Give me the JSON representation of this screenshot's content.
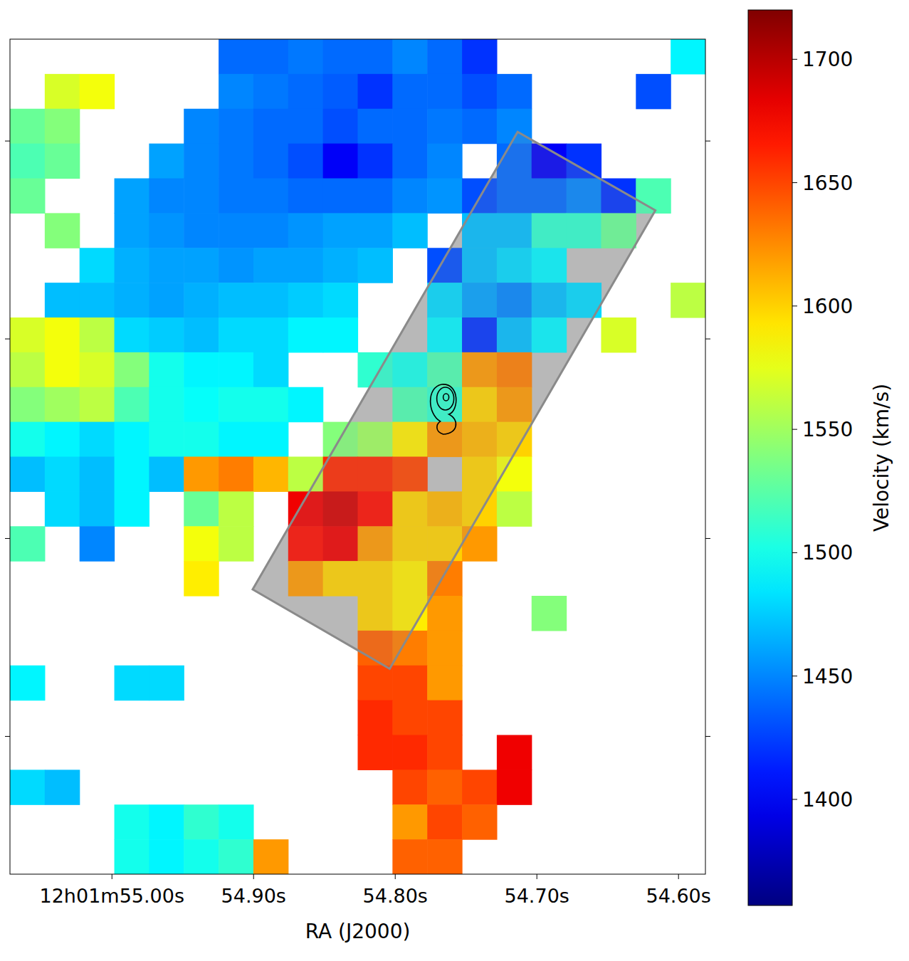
{
  "chart_data": {
    "type": "heatmap",
    "xlabel": "RA (J2000)",
    "xlim": [
      55.072,
      54.581
    ],
    "xticks": [
      {
        "value": 55.0,
        "label": "12h01m55.00s"
      },
      {
        "value": 54.9,
        "label": "54.90s"
      },
      {
        "value": 54.8,
        "label": "54.80s"
      },
      {
        "value": 54.7,
        "label": "54.70s"
      },
      {
        "value": 54.6,
        "label": "54.60s"
      }
    ],
    "ylim": [
      0,
      100
    ],
    "yticks": [
      16.5,
      40.2,
      64.1,
      87.8
    ],
    "tick_labels": "x",
    "cells": [
      [
        null,
        null,
        null,
        null,
        null,
        null,
        1440,
        1440,
        1445,
        1440,
        1440,
        1450,
        1440,
        1420,
        null,
        null,
        null,
        null,
        null,
        1490
      ],
      [
        null,
        1570,
        1580,
        null,
        null,
        null,
        1450,
        1445,
        1440,
        1435,
        1420,
        1440,
        1440,
        1430,
        1440,
        null,
        null,
        null,
        1430,
        null
      ],
      [
        1530,
        1540,
        null,
        null,
        null,
        1450,
        1445,
        1440,
        1440,
        1430,
        1440,
        1440,
        1445,
        1440,
        1450,
        null,
        null,
        null,
        null,
        null
      ],
      [
        1520,
        1530,
        null,
        null,
        1460,
        1450,
        1445,
        1440,
        1430,
        1400,
        1420,
        1440,
        1450,
        null,
        1440,
        1400,
        1420,
        null,
        null,
        null
      ],
      [
        1530,
        null,
        null,
        1460,
        1450,
        1450,
        1445,
        1445,
        1440,
        1440,
        1440,
        1450,
        1455,
        1430,
        1440,
        1440,
        1450,
        1420,
        1520,
        null
      ],
      [
        null,
        1540,
        null,
        1460,
        1455,
        1450,
        1450,
        1450,
        1455,
        1460,
        1460,
        1470,
        null,
        1470,
        1470,
        1510,
        1510,
        1530,
        null,
        null
      ],
      [
        null,
        null,
        1480,
        1465,
        1460,
        1460,
        1455,
        1460,
        1460,
        1465,
        1470,
        null,
        1430,
        1470,
        1480,
        1490,
        null,
        null,
        null,
        null
      ],
      [
        null,
        1470,
        1470,
        1465,
        1460,
        1465,
        1470,
        1470,
        1475,
        1480,
        null,
        null,
        1480,
        1460,
        1450,
        1470,
        1480,
        null,
        null,
        1560
      ],
      [
        1570,
        1580,
        1560,
        1480,
        1475,
        1470,
        1480,
        1480,
        1490,
        1490,
        null,
        null,
        1490,
        1420,
        1470,
        1490,
        null,
        1570,
        null,
        null
      ],
      [
        1560,
        1580,
        1570,
        1540,
        1500,
        1490,
        1490,
        1480,
        null,
        null,
        1510,
        1500,
        1520,
        1620,
        1630,
        null,
        null,
        null,
        null,
        null
      ],
      [
        1540,
        1550,
        1560,
        1520,
        1500,
        1495,
        1500,
        1500,
        1490,
        null,
        null,
        1520,
        1510,
        1600,
        1620,
        null,
        null,
        null,
        null,
        null
      ],
      [
        1500,
        1490,
        1480,
        1490,
        1500,
        1500,
        1490,
        1490,
        null,
        1540,
        1550,
        1590,
        1620,
        1610,
        1600,
        null,
        null,
        null,
        null,
        null
      ],
      [
        1470,
        1480,
        1470,
        1490,
        1470,
        1620,
        1630,
        1610,
        1560,
        1660,
        1660,
        1650,
        null,
        1600,
        1580,
        null,
        null,
        null,
        null,
        null
      ],
      [
        null,
        1480,
        1470,
        1490,
        null,
        1530,
        1560,
        null,
        1680,
        1690,
        1670,
        1600,
        1610,
        1600,
        1560,
        null,
        null,
        null,
        null,
        null
      ],
      [
        1520,
        null,
        1450,
        null,
        null,
        1580,
        1560,
        null,
        1670,
        1680,
        1620,
        1600,
        1600,
        1620,
        null,
        null,
        null,
        null,
        null,
        null
      ],
      [
        null,
        null,
        null,
        null,
        null,
        1590,
        null,
        null,
        1620,
        1600,
        1600,
        1590,
        1630,
        null,
        null,
        null,
        null,
        null,
        null,
        null
      ],
      [
        null,
        null,
        null,
        null,
        null,
        null,
        null,
        null,
        null,
        null,
        1600,
        1590,
        1620,
        null,
        null,
        1540,
        null,
        null,
        null,
        null
      ],
      [
        null,
        null,
        null,
        null,
        null,
        null,
        null,
        null,
        null,
        null,
        1640,
        1630,
        1620,
        null,
        null,
        null,
        null,
        null,
        null,
        null
      ],
      [
        1490,
        null,
        null,
        1480,
        1480,
        null,
        null,
        null,
        null,
        null,
        1650,
        1650,
        1620,
        null,
        null,
        null,
        null,
        null,
        null,
        null
      ],
      [
        null,
        null,
        null,
        null,
        null,
        null,
        null,
        null,
        null,
        null,
        1660,
        1650,
        1650,
        null,
        null,
        null,
        null,
        null,
        null,
        null
      ],
      [
        null,
        null,
        null,
        null,
        null,
        null,
        null,
        null,
        null,
        null,
        1660,
        1660,
        1650,
        null,
        1680,
        null,
        null,
        null,
        null,
        null
      ],
      [
        1480,
        1470,
        null,
        null,
        null,
        null,
        null,
        null,
        null,
        null,
        null,
        1650,
        1640,
        1650,
        1680,
        null,
        null,
        null,
        null,
        null
      ],
      [
        null,
        null,
        null,
        1500,
        1490,
        1510,
        1500,
        null,
        null,
        null,
        null,
        1620,
        1650,
        1640,
        null,
        null,
        null,
        null,
        null,
        null
      ],
      [
        null,
        null,
        null,
        1500,
        1490,
        1500,
        1510,
        1620,
        null,
        null,
        null,
        1640,
        1640,
        null,
        null,
        null,
        null,
        null,
        null,
        null
      ]
    ],
    "colorbar_label": "Velocity (km/s)",
    "colorbar_range": [
      1357,
      1720
    ],
    "colorbar_ticks": [
      1400,
      1450,
      1500,
      1550,
      1600,
      1650,
      1700
    ]
  }
}
